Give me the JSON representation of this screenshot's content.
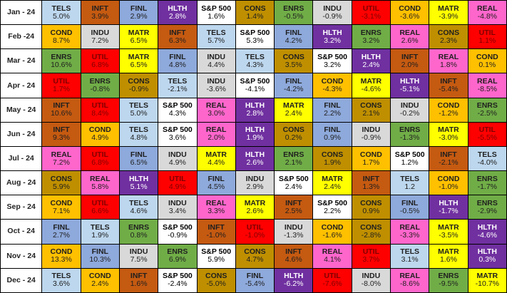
{
  "sector_colors": {
    "TELS": {
      "bg": "#BDD7EE",
      "fg": "#1F1F1F"
    },
    "INFT": {
      "bg": "#C55A11",
      "fg": "#1F1F1F"
    },
    "FINL": {
      "bg": "#8EA9DB",
      "fg": "#1F1F1F"
    },
    "HLTH": {
      "bg": "#7030A0",
      "fg": "#FFFFFF"
    },
    "S&P 500": {
      "bg": "#FFFFFF",
      "fg": "#000000"
    },
    "CONS": {
      "bg": "#BF8F00",
      "fg": "#1F1F1F"
    },
    "ENRS": {
      "bg": "#70AD47",
      "fg": "#1F1F1F"
    },
    "INDU": {
      "bg": "#D9D9D9",
      "fg": "#1F1F1F"
    },
    "UTIL": {
      "bg": "#FF0000",
      "fg": "#7F0000"
    },
    "COND": {
      "bg": "#FFC000",
      "fg": "#1F1F1F"
    },
    "MATR": {
      "bg": "#FFFF00",
      "fg": "#1F1F1F"
    },
    "REAL": {
      "bg": "#FF66CC",
      "fg": "#1F1F1F"
    }
  },
  "chart_data": {
    "type": "heatmap",
    "rows": [
      {
        "month": "Jan - 24",
        "cells": [
          [
            "TELS",
            "5.0%"
          ],
          [
            "INFT",
            "3.9%"
          ],
          [
            "FINL",
            "2.9%"
          ],
          [
            "HLTH",
            "2.8%"
          ],
          [
            "S&P 500",
            "1.6%"
          ],
          [
            "CONS",
            "1.4%"
          ],
          [
            "ENRS",
            "-0.5%"
          ],
          [
            "INDU",
            "-0.9%"
          ],
          [
            "UTIL",
            "-3.1%"
          ],
          [
            "COND",
            "-3.6%"
          ],
          [
            "MATR",
            "-3.9%"
          ],
          [
            "REAL",
            "-4.8%"
          ]
        ]
      },
      {
        "month": "Feb -24",
        "cells": [
          [
            "COND",
            "8.7%"
          ],
          [
            "INDU",
            "7.2%"
          ],
          [
            "MATR",
            "6.5%"
          ],
          [
            "INFT",
            "6.3%"
          ],
          [
            "TELS",
            "5.7%"
          ],
          [
            "S&P 500",
            "5.3%"
          ],
          [
            "FINL",
            "4.2%"
          ],
          [
            "HLTH",
            "3.2%"
          ],
          [
            "ENRS",
            "3.2%"
          ],
          [
            "REAL",
            "2.6%"
          ],
          [
            "CONS",
            "2.3%"
          ],
          [
            "UTIL",
            "1.1%"
          ]
        ]
      },
      {
        "month": "Mar - 24",
        "cells": [
          [
            "ENRS",
            "10.6%"
          ],
          [
            "UTIL",
            "6.8%"
          ],
          [
            "MATR",
            "6.5%"
          ],
          [
            "FINL",
            "4.8%"
          ],
          [
            "INDU",
            "4.4%"
          ],
          [
            "TELS",
            "4.3%"
          ],
          [
            "CONS",
            "3.5%"
          ],
          [
            "S&P 500",
            "3.2%"
          ],
          [
            "HLTH",
            "2.4%"
          ],
          [
            "INFT",
            "2.0%"
          ],
          [
            "REAL",
            "1.8%"
          ],
          [
            "COND",
            "0.1%"
          ]
        ]
      },
      {
        "month": "Apr - 24",
        "cells": [
          [
            "UTIL",
            "1.7%"
          ],
          [
            "ENRS",
            "-0.8%"
          ],
          [
            "CONS",
            "-0.9%"
          ],
          [
            "TELS",
            "-2.1%"
          ],
          [
            "INDU",
            "-3.6%"
          ],
          [
            "S&P 500",
            "-4.1%"
          ],
          [
            "FINL",
            "-4.2%"
          ],
          [
            "COND",
            "-4.3%"
          ],
          [
            "MATR",
            "-4.6%"
          ],
          [
            "HLTH",
            "-5.1%"
          ],
          [
            "INFT",
            "-5.4%"
          ],
          [
            "REAL",
            "-8.5%"
          ]
        ]
      },
      {
        "month": "May - 24",
        "cells": [
          [
            "INFT",
            "10.6%"
          ],
          [
            "UTIL",
            "8.4%"
          ],
          [
            "TELS",
            "5.0%"
          ],
          [
            "S&P 500",
            "4.3%"
          ],
          [
            "REAL",
            "3.0%"
          ],
          [
            "HLTH",
            "2.8%"
          ],
          [
            "MATR",
            "2.4%"
          ],
          [
            "FINL",
            "2.2%"
          ],
          [
            "CONS",
            "2.1%"
          ],
          [
            "INDU",
            "-0.2%"
          ],
          [
            "COND",
            "-1.2%"
          ],
          [
            "ENRS",
            "-2.5%"
          ]
        ]
      },
      {
        "month": "Jun - 24",
        "cells": [
          [
            "INFT",
            "9.3%"
          ],
          [
            "COND",
            "4.9%"
          ],
          [
            "TELS",
            "4.8%"
          ],
          [
            "S&P 500",
            "3.6%"
          ],
          [
            "REAL",
            "2.0%"
          ],
          [
            "HLTH",
            "1.9%"
          ],
          [
            "CONS",
            "0.2%"
          ],
          [
            "FINL",
            "0.9%"
          ],
          [
            "INDU",
            "-0.9%"
          ],
          [
            "ENRS",
            "-1.3%"
          ],
          [
            "MATR",
            "-3.0%"
          ],
          [
            "UTIL",
            "-5.5%"
          ]
        ]
      },
      {
        "month": "Jul - 24",
        "cells": [
          [
            "REAL",
            "7.2%"
          ],
          [
            "UTIL",
            "6.8%"
          ],
          [
            "FINL",
            "6.5%"
          ],
          [
            "INDU",
            "4.9%"
          ],
          [
            "MATR",
            "4.4%"
          ],
          [
            "HLTH",
            "2.6%"
          ],
          [
            "ENRS",
            "2.1%"
          ],
          [
            "CONS",
            "1.9%"
          ],
          [
            "COND",
            "1.7%"
          ],
          [
            "S&P 500",
            "1.2%"
          ],
          [
            "INFT",
            "-2.1%"
          ],
          [
            "TELS",
            "-4.0%"
          ]
        ]
      },
      {
        "month": "Aug - 24",
        "cells": [
          [
            "CONS",
            "5.9%"
          ],
          [
            "REAL",
            "5.8%"
          ],
          [
            "HLTH",
            "5.1%"
          ],
          [
            "UTIL",
            "4.9%"
          ],
          [
            "FINL",
            "4.5%"
          ],
          [
            "INDU",
            "2.9%"
          ],
          [
            "S&P 500",
            "2.4%"
          ],
          [
            "MATR",
            "2.4%"
          ],
          [
            "INFT",
            "1.3%"
          ],
          [
            "TELS",
            "1.2"
          ],
          [
            "COND",
            "-1.0%"
          ],
          [
            "ENRS",
            "-1.7%"
          ]
        ]
      },
      {
        "month": "Sep - 24",
        "cells": [
          [
            "COND",
            "7.1%"
          ],
          [
            "UTIL",
            "6.6%"
          ],
          [
            "TELS",
            "4.6%"
          ],
          [
            "INDU",
            "3.4%"
          ],
          [
            "REAL",
            "3.3%"
          ],
          [
            "MATR",
            "2.6%"
          ],
          [
            "INFT",
            "2.5%"
          ],
          [
            "S&P 500",
            "2.2%"
          ],
          [
            "CONS",
            "0.9%"
          ],
          [
            "FINL",
            "-0.5%"
          ],
          [
            "HLTH",
            "-1.7%"
          ],
          [
            "ENRS",
            "-2.9%"
          ]
        ]
      },
      {
        "month": "Oct - 24",
        "cells": [
          [
            "FINL",
            "2.7%"
          ],
          [
            "TELS",
            "1.9%"
          ],
          [
            "ENRS",
            "0.8%"
          ],
          [
            "S&P 500",
            "-0.9%"
          ],
          [
            "INFT",
            "-1.0%"
          ],
          [
            "UTIL",
            "-1.0%"
          ],
          [
            "INDU",
            "-1.3%"
          ],
          [
            "COND",
            "-1.6%"
          ],
          [
            "CONS",
            "-2.8%"
          ],
          [
            "REAL",
            "-3.3%"
          ],
          [
            "MATR",
            "-3.5%"
          ],
          [
            "HLTH",
            "-4.6%"
          ]
        ]
      },
      {
        "month": "Nov - 24",
        "cells": [
          [
            "COND",
            "13.3%"
          ],
          [
            "FINL",
            "10.3%"
          ],
          [
            "INDU",
            "7.5%"
          ],
          [
            "ENRS",
            "6.9%"
          ],
          [
            "S&P 500",
            "5.9%"
          ],
          [
            "CONS",
            "4.7%"
          ],
          [
            "INFT",
            "4.6%"
          ],
          [
            "REAL",
            "4.1%"
          ],
          [
            "UTIL",
            "3.7%"
          ],
          [
            "TELS",
            "3.1%"
          ],
          [
            "MATR",
            "1.6%"
          ],
          [
            "HLTH",
            "0.3%"
          ]
        ]
      },
      {
        "month": "Dec - 24",
        "cells": [
          [
            "TELS",
            "3.6%"
          ],
          [
            "COND",
            "2.4%"
          ],
          [
            "INFT",
            "1.6%"
          ],
          [
            "S&P 500",
            "-2.4%"
          ],
          [
            "CONS",
            "-5.0%"
          ],
          [
            "FINL",
            "-5.4%"
          ],
          [
            "HLTH",
            "-6.2%"
          ],
          [
            "UTIL",
            "-7.6%"
          ],
          [
            "INDU",
            "-8.0%"
          ],
          [
            "REAL",
            "-8.6%"
          ],
          [
            "ENRS",
            "-9.5%"
          ],
          [
            "MATR",
            "-10.7%"
          ]
        ]
      }
    ]
  }
}
